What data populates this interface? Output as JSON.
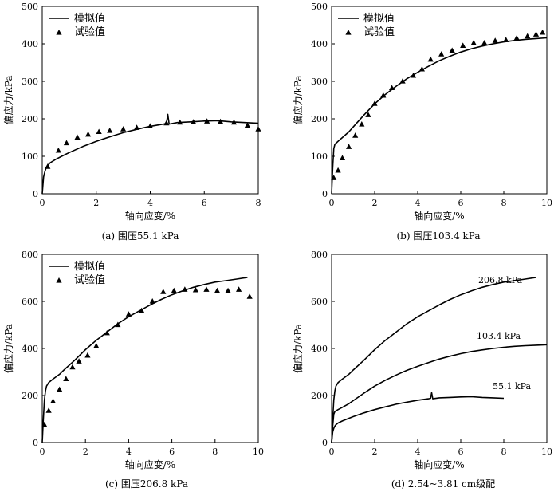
{
  "chart_data": [
    {
      "type": "line",
      "caption": "(a) 围压55.1 kPa",
      "xlabel": "轴向应变/%",
      "ylabel": "偏应力/kPa",
      "xlim": [
        0,
        8
      ],
      "ylim": [
        0,
        500
      ],
      "xticks": [
        0,
        2,
        4,
        6,
        8
      ],
      "yticks": [
        0,
        100,
        200,
        300,
        400,
        500
      ],
      "legend": {
        "position": "top-left",
        "entries": [
          "模拟值",
          "试验值"
        ]
      },
      "series": [
        {
          "name": "模拟值",
          "kind": "line",
          "x": [
            0,
            0.05,
            0.1,
            0.15,
            0.2,
            0.3,
            0.5,
            0.8,
            1.0,
            1.5,
            2.0,
            2.5,
            3.0,
            3.5,
            4.0,
            4.5,
            4.6,
            4.65,
            4.7,
            5.0,
            5.5,
            6.0,
            6.5,
            7.0,
            7.5,
            8.0
          ],
          "y": [
            0,
            45,
            60,
            70,
            76,
            83,
            92,
            103,
            110,
            126,
            140,
            152,
            163,
            172,
            180,
            186,
            188,
            212,
            186,
            190,
            192,
            194,
            195,
            192,
            190,
            188
          ]
        },
        {
          "name": "试验值",
          "kind": "scatter",
          "x": [
            0.2,
            0.6,
            0.9,
            1.3,
            1.7,
            2.1,
            2.5,
            3.0,
            3.5,
            4.0,
            4.6,
            5.1,
            5.6,
            6.1,
            6.6,
            7.1,
            7.6,
            8.0
          ],
          "y": [
            72,
            115,
            135,
            150,
            158,
            165,
            168,
            172,
            176,
            180,
            188,
            190,
            191,
            193,
            192,
            190,
            182,
            172
          ]
        }
      ]
    },
    {
      "type": "line",
      "caption": "(b) 围压103.4 kPa",
      "xlabel": "轴向应变/%",
      "ylabel": "偏应力/kPa",
      "xlim": [
        0,
        10
      ],
      "ylim": [
        0,
        500
      ],
      "xticks": [
        0,
        2,
        4,
        6,
        8,
        10
      ],
      "yticks": [
        0,
        100,
        200,
        300,
        400,
        500
      ],
      "legend": {
        "position": "top-left",
        "entries": [
          "模拟值",
          "试验值"
        ]
      },
      "series": [
        {
          "name": "模拟值",
          "kind": "line",
          "x": [
            0,
            0.05,
            0.1,
            0.15,
            0.3,
            0.5,
            0.8,
            1.0,
            1.5,
            2.0,
            2.5,
            3.0,
            3.5,
            4.0,
            4.5,
            5.0,
            5.5,
            6.0,
            6.5,
            7.0,
            7.5,
            8.0,
            8.5,
            9.0,
            9.5,
            10.0
          ],
          "y": [
            0,
            70,
            120,
            132,
            140,
            150,
            165,
            178,
            210,
            240,
            265,
            287,
            307,
            324,
            340,
            355,
            367,
            378,
            387,
            394,
            400,
            405,
            409,
            412,
            414,
            416
          ]
        },
        {
          "name": "试验值",
          "kind": "scatter",
          "x": [
            0.1,
            0.3,
            0.5,
            0.8,
            1.1,
            1.4,
            1.7,
            2.0,
            2.4,
            2.8,
            3.3,
            3.8,
            4.2,
            4.6,
            5.1,
            5.6,
            6.1,
            6.6,
            7.1,
            7.6,
            8.1,
            8.6,
            9.1,
            9.5,
            9.8
          ],
          "y": [
            42,
            62,
            95,
            125,
            155,
            185,
            210,
            240,
            262,
            282,
            300,
            315,
            332,
            358,
            372,
            382,
            395,
            402,
            402,
            408,
            410,
            415,
            420,
            425,
            430
          ]
        }
      ]
    },
    {
      "type": "line",
      "caption": "(c) 围压206.8 kPa",
      "xlabel": "轴向应变/%",
      "ylabel": "偏应力/kPa",
      "xlim": [
        0,
        10
      ],
      "ylim": [
        0,
        800
      ],
      "xticks": [
        0,
        2,
        4,
        6,
        8,
        10
      ],
      "yticks": [
        0,
        200,
        400,
        600,
        800
      ],
      "legend": {
        "position": "top-left",
        "entries": [
          "模拟值",
          "试验值"
        ]
      },
      "series": [
        {
          "name": "模拟值",
          "kind": "line",
          "x": [
            0,
            0.05,
            0.1,
            0.15,
            0.2,
            0.3,
            0.5,
            0.8,
            1.0,
            1.5,
            2.0,
            2.5,
            3.0,
            3.5,
            4.0,
            4.5,
            5.0,
            5.5,
            6.0,
            6.5,
            7.0,
            7.5,
            8.0,
            8.5,
            9.0,
            9.5
          ],
          "y": [
            0,
            100,
            180,
            220,
            240,
            255,
            270,
            290,
            308,
            350,
            395,
            435,
            470,
            505,
            535,
            560,
            585,
            608,
            628,
            645,
            660,
            672,
            682,
            688,
            695,
            702
          ]
        },
        {
          "name": "试验值",
          "kind": "scatter",
          "x": [
            0.1,
            0.3,
            0.5,
            0.8,
            1.1,
            1.4,
            1.7,
            2.1,
            2.5,
            3.0,
            3.5,
            4.0,
            4.6,
            5.1,
            5.6,
            6.1,
            6.6,
            7.1,
            7.6,
            8.1,
            8.6,
            9.1,
            9.6
          ],
          "y": [
            75,
            135,
            175,
            225,
            270,
            320,
            345,
            370,
            410,
            465,
            500,
            545,
            560,
            600,
            640,
            645,
            650,
            648,
            650,
            645,
            645,
            650,
            620
          ]
        }
      ]
    },
    {
      "type": "line",
      "caption": "(d) 2.54~3.81 cm级配",
      "xlabel": "轴向应变/%",
      "ylabel": "偏应力/kPa",
      "xlim": [
        0,
        10
      ],
      "ylim": [
        0,
        800
      ],
      "xticks": [
        0,
        2,
        4,
        6,
        8,
        10
      ],
      "yticks": [
        0,
        200,
        400,
        600,
        800
      ],
      "series": [
        {
          "name": "206.8 kPa",
          "kind": "line",
          "x": [
            0,
            0.05,
            0.1,
            0.15,
            0.2,
            0.3,
            0.5,
            0.8,
            1.0,
            1.5,
            2.0,
            2.5,
            3.0,
            3.5,
            4.0,
            4.5,
            5.0,
            5.5,
            6.0,
            6.5,
            7.0,
            7.5,
            8.0,
            8.5,
            9.0,
            9.5
          ],
          "y": [
            0,
            100,
            180,
            220,
            240,
            255,
            270,
            290,
            308,
            350,
            395,
            435,
            470,
            505,
            535,
            560,
            585,
            608,
            628,
            645,
            660,
            672,
            682,
            688,
            695,
            702
          ]
        },
        {
          "name": "103.4 kPa",
          "kind": "line",
          "x": [
            0,
            0.05,
            0.1,
            0.15,
            0.3,
            0.5,
            0.8,
            1.0,
            1.5,
            2.0,
            2.5,
            3.0,
            3.5,
            4.0,
            4.5,
            5.0,
            5.5,
            6.0,
            6.5,
            7.0,
            7.5,
            8.0,
            8.5,
            9.0,
            9.5,
            10.0
          ],
          "y": [
            0,
            70,
            120,
            132,
            140,
            150,
            165,
            178,
            210,
            240,
            265,
            287,
            307,
            324,
            340,
            355,
            367,
            378,
            387,
            394,
            400,
            405,
            409,
            412,
            414,
            416
          ]
        },
        {
          "name": "55.1 kPa",
          "kind": "line",
          "x": [
            0,
            0.05,
            0.1,
            0.15,
            0.2,
            0.3,
            0.5,
            0.8,
            1.0,
            1.5,
            2.0,
            2.5,
            3.0,
            3.5,
            4.0,
            4.5,
            4.6,
            4.65,
            4.7,
            5.0,
            5.5,
            6.0,
            6.5,
            7.0,
            7.5,
            8.0
          ],
          "y": [
            0,
            45,
            60,
            70,
            76,
            83,
            92,
            103,
            110,
            126,
            140,
            152,
            163,
            172,
            180,
            186,
            188,
            212,
            186,
            190,
            192,
            194,
            195,
            192,
            190,
            188
          ]
        }
      ],
      "annotations": [
        "206.8 kPa",
        "103.4 kPa",
        "55.1 kPa"
      ]
    }
  ]
}
